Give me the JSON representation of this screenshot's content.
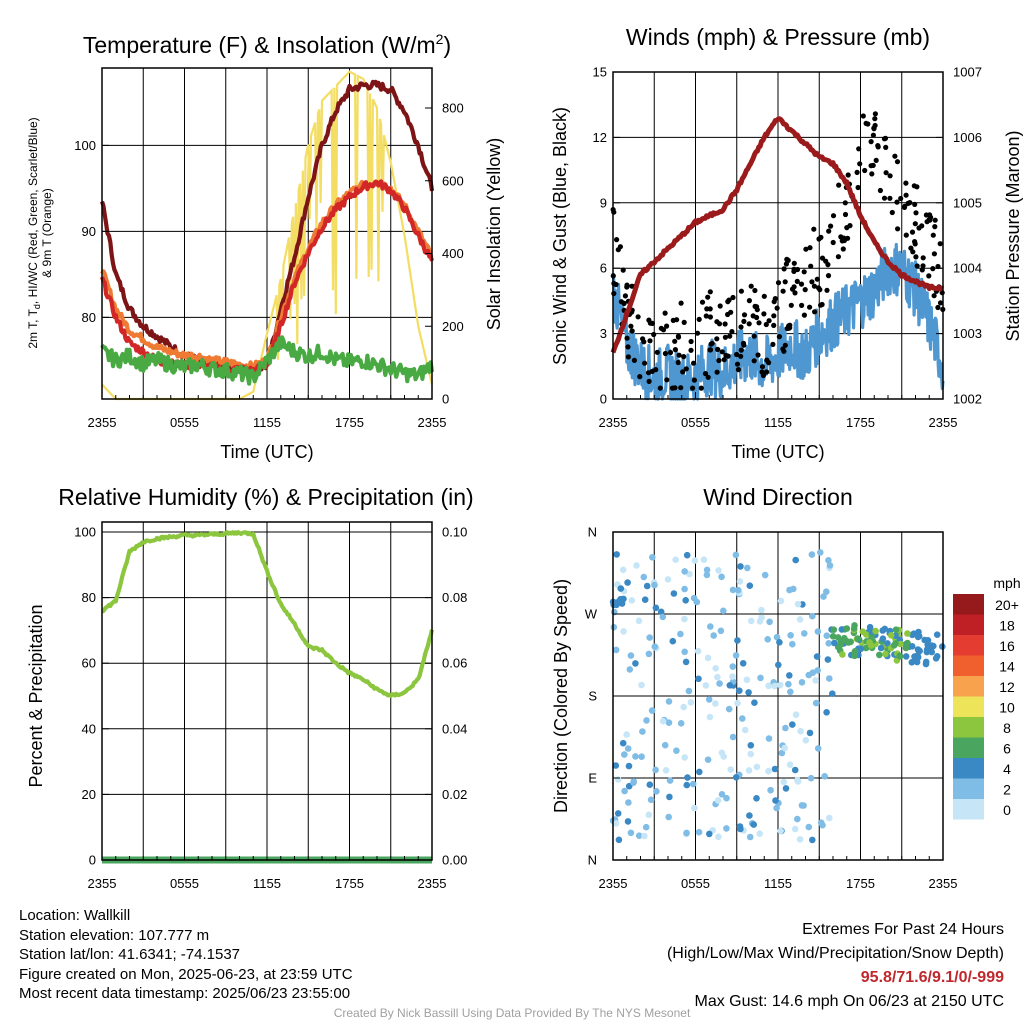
{
  "time_ticks": [
    "2355",
    "0555",
    "1155",
    "1755",
    "2355"
  ],
  "chart_data": [
    {
      "type": "line",
      "title": "Temperature (F) & Insolation (W/m²)",
      "title_main": "Temperature (F) & Insolation (W/m",
      "title_sup": "2",
      "title_end": ")",
      "xlabel": "Time (UTC)",
      "ylabel_line1": "2m T, T",
      "ylabel_sub": "d",
      "ylabel_line1_end": ", HI/WC (Red, Green, Scarlet/Blue)",
      "ylabel_line2": "& 9m T (Orange)",
      "y2label": "Solar Insolation (Yellow)",
      "ylim": [
        70.5,
        109
      ],
      "yticks": [
        80,
        90,
        100
      ],
      "y2lim": [
        0,
        910
      ],
      "y2ticks": [
        0,
        200,
        400,
        600,
        800
      ],
      "x_hours": [
        0,
        1,
        2,
        3,
        4,
        5,
        6,
        7,
        8,
        9,
        10,
        11,
        12,
        13,
        14,
        15,
        16,
        17,
        18,
        19,
        20,
        21,
        22,
        23,
        24
      ],
      "series": [
        {
          "color": "#7d1517",
          "values": [
            93.5,
            85,
            81,
            79,
            77.8,
            76.6,
            75.6,
            75,
            74.6,
            74.2,
            74,
            74,
            74.2,
            81,
            87,
            94,
            100,
            104,
            106.5,
            107,
            107,
            106.5,
            104,
            100,
            95
          ]
        },
        {
          "color": "#ee7a33",
          "values": [
            85.5,
            81,
            78.5,
            77.5,
            76.5,
            76,
            75.6,
            75.5,
            75,
            74.8,
            74.5,
            74.3,
            75,
            80,
            84.5,
            88,
            91,
            93,
            94.5,
            95.4,
            95.8,
            95,
            93,
            90,
            87
          ]
        },
        {
          "color": "#d12727",
          "values": [
            84.5,
            80,
            77,
            76,
            75,
            74.6,
            74.5,
            74.3,
            74.2,
            74,
            74,
            73.8,
            74.5,
            79,
            84,
            87.5,
            90.5,
            92.5,
            94,
            95.2,
            95.7,
            94.8,
            92.7,
            89.5,
            86.5
          ]
        },
        {
          "color": "#49a942",
          "values": [
            76,
            75,
            75.5,
            74.6,
            75,
            74.5,
            74.2,
            74.5,
            74,
            73.8,
            73.5,
            73,
            75,
            77,
            76,
            75.5,
            76,
            75,
            74.8,
            75,
            74.5,
            74,
            73.5,
            73.2,
            74.5
          ]
        }
      ],
      "insolation_values": [
        40,
        0,
        0,
        0,
        0,
        0,
        0,
        0,
        0,
        0,
        0,
        20,
        180,
        330,
        520,
        700,
        820,
        860,
        900,
        880,
        800,
        650,
        450,
        200,
        40
      ]
    },
    {
      "type": "line",
      "title": "Winds (mph) & Pressure (mb)",
      "xlabel": "Time (UTC)",
      "ylabel": "Sonic Wind & Gust (Blue, Black)",
      "y2label": "Station Pressure (Maroon)",
      "ylim": [
        0,
        15
      ],
      "yticks": [
        0,
        3,
        6,
        9,
        12,
        15
      ],
      "y2lim": [
        1002,
        1007
      ],
      "y2ticks": [
        1002,
        1003,
        1004,
        1005,
        1006,
        1007
      ],
      "x_hours": [
        0,
        1,
        2,
        3,
        4,
        5,
        6,
        7,
        8,
        9,
        10,
        11,
        12,
        13,
        14,
        15,
        16,
        17,
        18,
        19,
        20,
        21,
        22,
        23,
        24
      ],
      "pressure_values": [
        1002.7,
        1003.3,
        1003.9,
        1004.1,
        1004.3,
        1004.5,
        1004.7,
        1004.8,
        1004.9,
        1005.2,
        1005.6,
        1006.0,
        1006.3,
        1006.1,
        1005.9,
        1005.7,
        1005.6,
        1005.3,
        1004.8,
        1004.4,
        1004.1,
        1003.9,
        1003.8,
        1003.7,
        1003.7
      ],
      "wind_values": [
        5,
        2.5,
        1.5,
        1,
        1.2,
        0.8,
        1,
        1.5,
        1.2,
        1.8,
        2,
        1.5,
        2,
        2.5,
        2,
        3,
        3.5,
        4,
        4.5,
        5,
        6,
        6,
        5,
        3.5,
        1.5
      ],
      "gust_values": [
        7,
        3.5,
        3,
        2.5,
        2,
        2.5,
        2,
        3,
        2.5,
        3,
        4,
        3,
        3.5,
        5,
        5.5,
        6,
        7,
        9,
        11,
        12,
        10.5,
        9,
        8,
        7,
        5.5
      ]
    },
    {
      "type": "line",
      "title": "Relative Humidity (%) & Precipitation (in)",
      "ylabel": "Percent & Precipitation",
      "ylim": [
        0,
        100
      ],
      "yticks": [
        0,
        20,
        40,
        60,
        80,
        100
      ],
      "y2lim": [
        0,
        0.1
      ],
      "y2ticks": [
        "0.00",
        "0.02",
        "0.04",
        "0.06",
        "0.08",
        "0.10"
      ],
      "x_hours": [
        0,
        1,
        2,
        3,
        4,
        5,
        6,
        7,
        8,
        9,
        10,
        11,
        12,
        13,
        14,
        15,
        16,
        17,
        18,
        19,
        20,
        21,
        22,
        23,
        24
      ],
      "rh_values": [
        76,
        79,
        94,
        97,
        98,
        98.5,
        99,
        99,
        99.3,
        99.5,
        99.8,
        99.5,
        88,
        78,
        72,
        65,
        64,
        60,
        57,
        55,
        52,
        50,
        51,
        55,
        70
      ],
      "precip_values": [
        0,
        0,
        0,
        0,
        0,
        0,
        0,
        0,
        0,
        0,
        0,
        0,
        0,
        0,
        0,
        0,
        0,
        0,
        0,
        0,
        0,
        0,
        0,
        0,
        0
      ]
    },
    {
      "type": "scatter",
      "title": "Wind Direction",
      "ylabel": "Direction (Colored By Speed)",
      "yticks": [
        "N",
        "E",
        "S",
        "W",
        "N"
      ],
      "ylim": [
        0,
        360
      ],
      "legend_title": "mph",
      "legend_labels": [
        "20+",
        "18",
        "16",
        "14",
        "12",
        "10",
        "8",
        "6",
        "4",
        "2",
        "0"
      ],
      "legend_colors": [
        "#96191b",
        "#bf2026",
        "#e43c30",
        "#f0602e",
        "#f8a24e",
        "#ede45a",
        "#8cc63f",
        "#4aa55e",
        "#3a88c4",
        "#80bde6",
        "#c6e6f7"
      ]
    }
  ],
  "info": {
    "location": "Location: Wallkill",
    "elevation": "Station elevation: 107.777 m",
    "latlon": "Station lat/lon: 41.6341; -74.1537",
    "created": "Figure created on Mon, 2025-06-23, at 23:59 UTC",
    "recent": "Most recent data timestamp: 2025/06/23 23:55:00"
  },
  "extremes": {
    "title": "Extremes For Past 24 Hours",
    "subtitle": "(High/Low/Max Wind/Precipitation/Snow Depth)",
    "values": "95.8/71.6/9.1/0/-999",
    "gust": "Max Gust: 14.6 mph On 06/23 at 2150 UTC"
  },
  "footer": "Created By Nick Bassill Using Data Provided By The NYS Mesonet"
}
